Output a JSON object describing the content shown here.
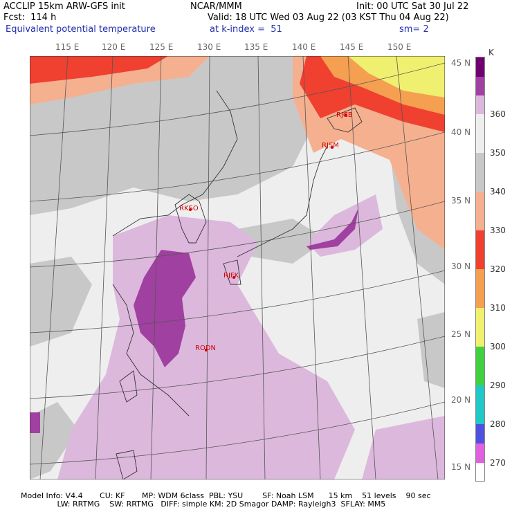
{
  "header": {
    "model": "ACCLIP 15km ARW-GFS init",
    "org": "NCAR/MMM",
    "init": "Init: 00 UTC Sat 30 Jul 22",
    "fcst": "Fcst:  114 h",
    "valid": "Valid: 18 UTC Wed 03 Aug 22 (03 KST Thu 04 Aug 22)",
    "field": "Equivalent potential temperature",
    "level": "at k-index =  51",
    "smooth": "sm= 2"
  },
  "map": {
    "lon_labels": [
      "115 E",
      "120 E",
      "125 E",
      "130 E",
      "135 E",
      "140 E",
      "145 E",
      "150 E"
    ],
    "lat_labels": [
      "45 N",
      "40 N",
      "35 N",
      "30 N",
      "25 N",
      "20 N",
      "15 N"
    ],
    "stations": [
      {
        "id": "RJCB"
      },
      {
        "id": "RJSM"
      },
      {
        "id": "RKSO"
      },
      {
        "id": "RJFK"
      },
      {
        "id": "RODN"
      }
    ],
    "colors": {
      "c270": "#e060e0",
      "c280": "#5050e0",
      "c290": "#20c8c8",
      "c300": "#40d040",
      "c310": "#f0f070",
      "c320": "#f5a050",
      "c330": "#f04030",
      "c340": "#f5b090",
      "c350": "#c8c8c8",
      "c360": "#eeeeee",
      "c365": "#dcb8dc",
      "c370": "#a040a0"
    }
  },
  "colorbar": {
    "unit": "K",
    "labels": [
      "360",
      "350",
      "340",
      "330",
      "320",
      "310",
      "300",
      "290",
      "280",
      "270"
    ]
  },
  "footer": {
    "line1": "Model Info: V4.4       CU: KF       MP: WDM 6class  PBL: YSU        SF: Noah LSM      15 km    51 levels    90 sec",
    "line2": "               LW: RRTMG    SW: RRTMG   DIFF: simple KM: 2D Smagor DAMP: Rayleigh3  SFLAY: MM5"
  }
}
